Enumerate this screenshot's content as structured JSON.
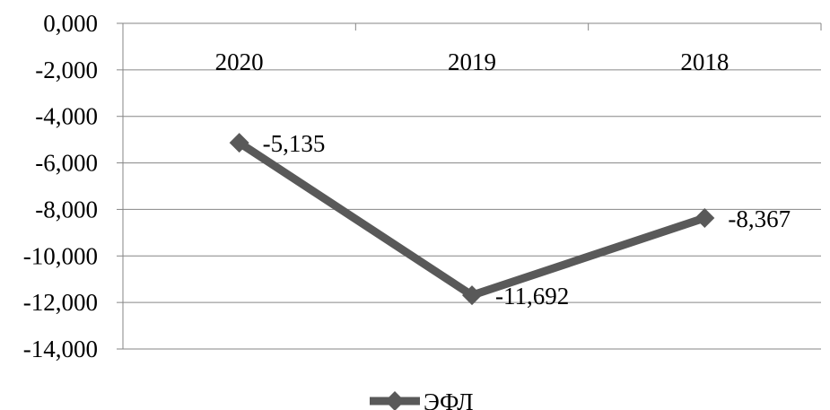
{
  "chart_data": {
    "type": "line",
    "categories": [
      "2020",
      "2019",
      "2018"
    ],
    "series": [
      {
        "name": "ЭФЛ",
        "values": [
          -5.135,
          -11.692,
          -8.367
        ],
        "color": "#595959"
      }
    ],
    "data_labels": [
      "-5,135",
      "-11,692",
      "-8,367"
    ],
    "y_ticks": [
      0,
      -2,
      -4,
      -6,
      -8,
      -10,
      -12,
      -14
    ],
    "y_tick_labels": [
      "0,000",
      "-2,000",
      "-4,000",
      "-6,000",
      "-8,000",
      "-10,000",
      "-12,000",
      "-14,000"
    ],
    "ylim": [
      -14,
      0
    ],
    "grid": true,
    "legend": {
      "position": "bottom",
      "label": "ЭФЛ"
    },
    "colors": {
      "grid": "#868686",
      "axis": "#868686",
      "series": "#595959"
    }
  }
}
